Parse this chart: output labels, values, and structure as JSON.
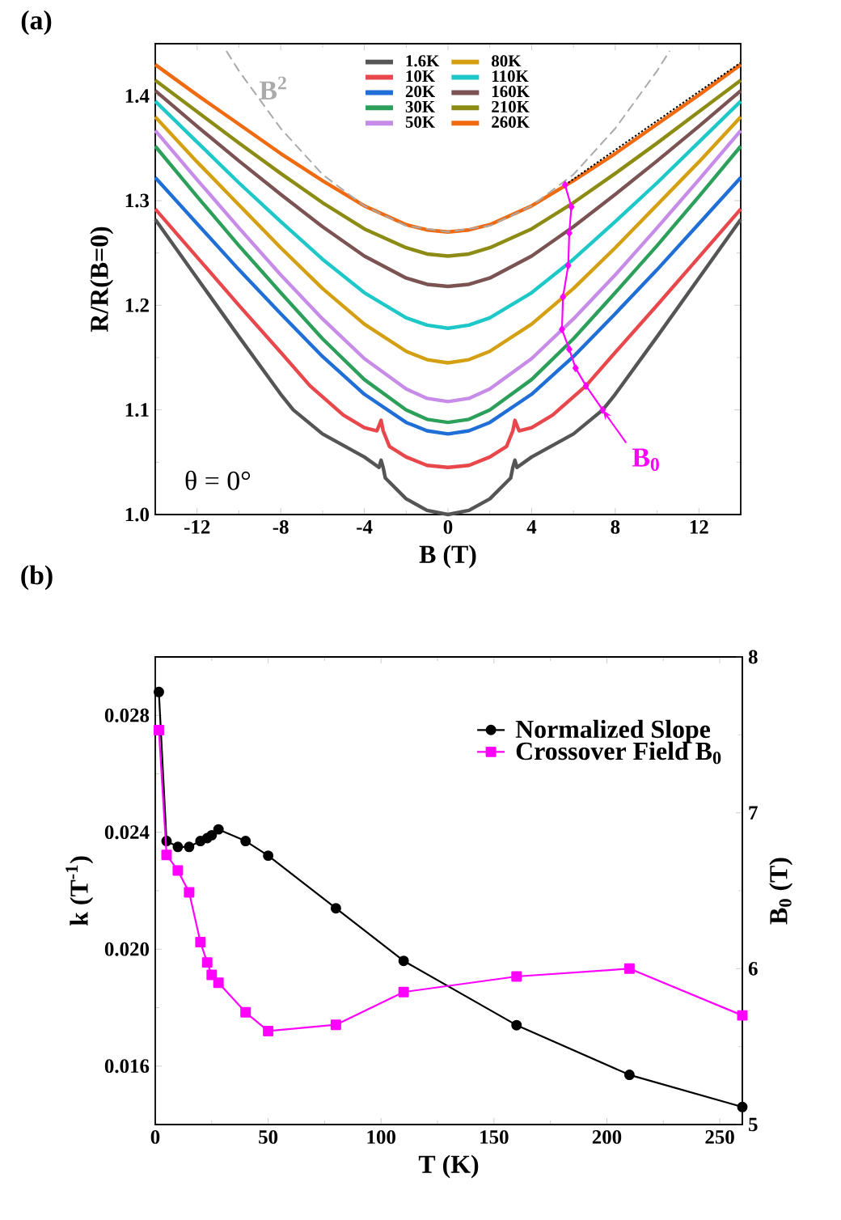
{
  "chart_data": [
    {
      "type": "line",
      "title": "(a)",
      "xlabel": "B (T)",
      "ylabel": "R/R(B=0)",
      "xlim": [
        -14,
        14
      ],
      "xticks": [
        -12,
        -8,
        -4,
        0,
        4,
        8,
        12
      ],
      "ylim": [
        1.0,
        1.45
      ],
      "yticks": [
        {
          "value": 1.0,
          "label": "1.0"
        },
        1.1,
        1.2,
        1.3,
        1.4
      ],
      "legend": "top",
      "annotations": [
        "θ = 0°",
        {
          "text": "B$_{0}$",
          "x": 7.4,
          "y": 1.1
        }
      ],
      "x": [
        -14,
        -12,
        -10,
        -8,
        -6,
        -4,
        -2,
        -1,
        0,
        1,
        2,
        4,
        6,
        8,
        10,
        12,
        14
      ],
      "series": [
        {
          "name": "1.6K",
          "color": "#555555",
          "x": [
            -14,
            -12,
            -10,
            -8,
            -7.4,
            -6,
            -4,
            -3.3,
            -3.2,
            -3.1,
            -3,
            -2,
            -1,
            0,
            1,
            2,
            3,
            3.1,
            3.2,
            3.3,
            4,
            6,
            7.4,
            8,
            10,
            12,
            14
          ],
          "values": [
            1.282,
            1.226,
            1.17,
            1.115,
            1.1,
            1.077,
            1.055,
            1.045,
            1.052,
            1.045,
            1.035,
            1.015,
            1.004,
            1.0,
            1.004,
            1.015,
            1.035,
            1.045,
            1.052,
            1.045,
            1.055,
            1.077,
            1.1,
            1.115,
            1.17,
            1.226,
            1.282
          ]
        },
        {
          "name": "10K",
          "color": "#e8474b",
          "x": [
            -14,
            -12,
            -10,
            -8,
            -6.6,
            -5,
            -4,
            -3.4,
            -3.2,
            -3.1,
            -2.8,
            -2,
            -1,
            0,
            1,
            2,
            2.8,
            3.1,
            3.2,
            3.4,
            4,
            5,
            6.6,
            8,
            10,
            12,
            14
          ],
          "values": [
            1.292,
            1.246,
            1.2,
            1.155,
            1.123,
            1.095,
            1.083,
            1.08,
            1.09,
            1.08,
            1.065,
            1.055,
            1.047,
            1.045,
            1.047,
            1.055,
            1.065,
            1.08,
            1.09,
            1.08,
            1.083,
            1.095,
            1.123,
            1.155,
            1.2,
            1.246,
            1.292
          ]
        },
        {
          "name": "20K",
          "color": "#1f6fd6",
          "values": [
            1.322,
            1.278,
            1.234,
            1.192,
            1.151,
            1.115,
            1.088,
            1.08,
            1.077,
            1.08,
            1.088,
            1.115,
            1.151,
            1.192,
            1.234,
            1.278,
            1.322
          ]
        },
        {
          "name": "30K",
          "color": "#2ca05a",
          "values": [
            1.352,
            1.304,
            1.257,
            1.212,
            1.168,
            1.129,
            1.1,
            1.091,
            1.088,
            1.091,
            1.1,
            1.129,
            1.168,
            1.212,
            1.257,
            1.304,
            1.352
          ]
        },
        {
          "name": "50K",
          "color": "#c78ce8",
          "values": [
            1.367,
            1.32,
            1.274,
            1.229,
            1.187,
            1.149,
            1.12,
            1.111,
            1.108,
            1.111,
            1.12,
            1.149,
            1.187,
            1.229,
            1.274,
            1.32,
            1.367
          ]
        },
        {
          "name": "80K",
          "color": "#d4a012",
          "values": [
            1.38,
            1.337,
            1.296,
            1.255,
            1.216,
            1.182,
            1.156,
            1.148,
            1.145,
            1.148,
            1.156,
            1.182,
            1.216,
            1.255,
            1.296,
            1.337,
            1.38
          ]
        },
        {
          "name": "110K",
          "color": "#1fc8c8",
          "values": [
            1.395,
            1.356,
            1.317,
            1.28,
            1.244,
            1.212,
            1.188,
            1.181,
            1.178,
            1.181,
            1.188,
            1.212,
            1.244,
            1.28,
            1.317,
            1.356,
            1.395
          ]
        },
        {
          "name": "160K",
          "color": "#7b5353",
          "values": [
            1.405,
            1.371,
            1.338,
            1.306,
            1.275,
            1.247,
            1.226,
            1.22,
            1.218,
            1.22,
            1.226,
            1.247,
            1.275,
            1.306,
            1.338,
            1.371,
            1.405
          ]
        },
        {
          "name": "210K",
          "color": "#8c8c14",
          "values": [
            1.415,
            1.385,
            1.355,
            1.326,
            1.298,
            1.273,
            1.255,
            1.249,
            1.247,
            1.249,
            1.255,
            1.273,
            1.298,
            1.326,
            1.355,
            1.385,
            1.415
          ]
        },
        {
          "name": "260K",
          "color": "#f06a10",
          "values": [
            1.43,
            1.401,
            1.373,
            1.345,
            1.319,
            1.295,
            1.277,
            1.272,
            1.27,
            1.272,
            1.277,
            1.295,
            1.319,
            1.345,
            1.373,
            1.401,
            1.43
          ]
        },
        {
          "name": "B$^{2}$",
          "color": "#aaaaaa",
          "line_style": "dashed",
          "x": [
            -10.6,
            -10,
            -8,
            -6,
            -4,
            -2,
            0,
            2,
            4,
            6,
            8,
            10,
            10.6
          ],
          "values": [
            1.443,
            1.424,
            1.369,
            1.325,
            1.295,
            1.276,
            1.27,
            1.276,
            1.295,
            1.325,
            1.369,
            1.424,
            1.443
          ]
        },
        {
          "color": "#000000",
          "line_style": "dotted",
          "x": [
            5.6,
            14
          ],
          "values": [
            1.315,
            1.432
          ]
        },
        {
          "color": "#ff00ff",
          "marker": "diamond",
          "x": [
            7.4,
            6.6,
            6.1,
            5.8,
            5.45,
            5.5,
            5.75,
            5.8,
            5.9,
            5.6
          ],
          "values": [
            1.1,
            1.123,
            1.14,
            1.158,
            1.177,
            1.208,
            1.238,
            1.269,
            1.294,
            1.315
          ]
        }
      ]
    },
    {
      "type": "line",
      "title": "(b)",
      "xlabel": "T (K)",
      "ylabel": "k (T$^{-1}$)",
      "y2label": "B$_{0}$ (T)",
      "xlim": [
        0,
        260
      ],
      "xticks": [
        0,
        50,
        100,
        150,
        200,
        250
      ],
      "ylim": [
        0.014,
        0.03
      ],
      "yticks": [
        0.016,
        {
          "value": 0.02,
          "label": "0.020"
        },
        0.024,
        0.028
      ],
      "y2lim": [
        5,
        8
      ],
      "y2ticks": [
        5,
        6,
        7,
        8
      ],
      "legend": "top right",
      "x": [
        1.6,
        5,
        10,
        15,
        20,
        23,
        25,
        28,
        40,
        50,
        80,
        110,
        160,
        210,
        260
      ],
      "series": [
        {
          "name": "Normalized Slope",
          "color": "#000000",
          "marker": "circle",
          "values": [
            0.0288,
            0.0237,
            0.0235,
            0.0235,
            0.0237,
            0.0238,
            0.0239,
            0.0241,
            0.0237,
            0.0232,
            0.0214,
            0.0196,
            0.0174,
            0.0157,
            0.0146
          ]
        },
        {
          "name": "Crossover Field B$_{0}$",
          "color": "#ff00ff",
          "marker": "square",
          "axis": "y2",
          "values": [
            7.53,
            6.73,
            6.63,
            6.49,
            6.17,
            6.04,
            5.96,
            5.91,
            5.72,
            5.6,
            5.64,
            5.85,
            5.95,
            6.0,
            5.7
          ]
        }
      ]
    }
  ]
}
